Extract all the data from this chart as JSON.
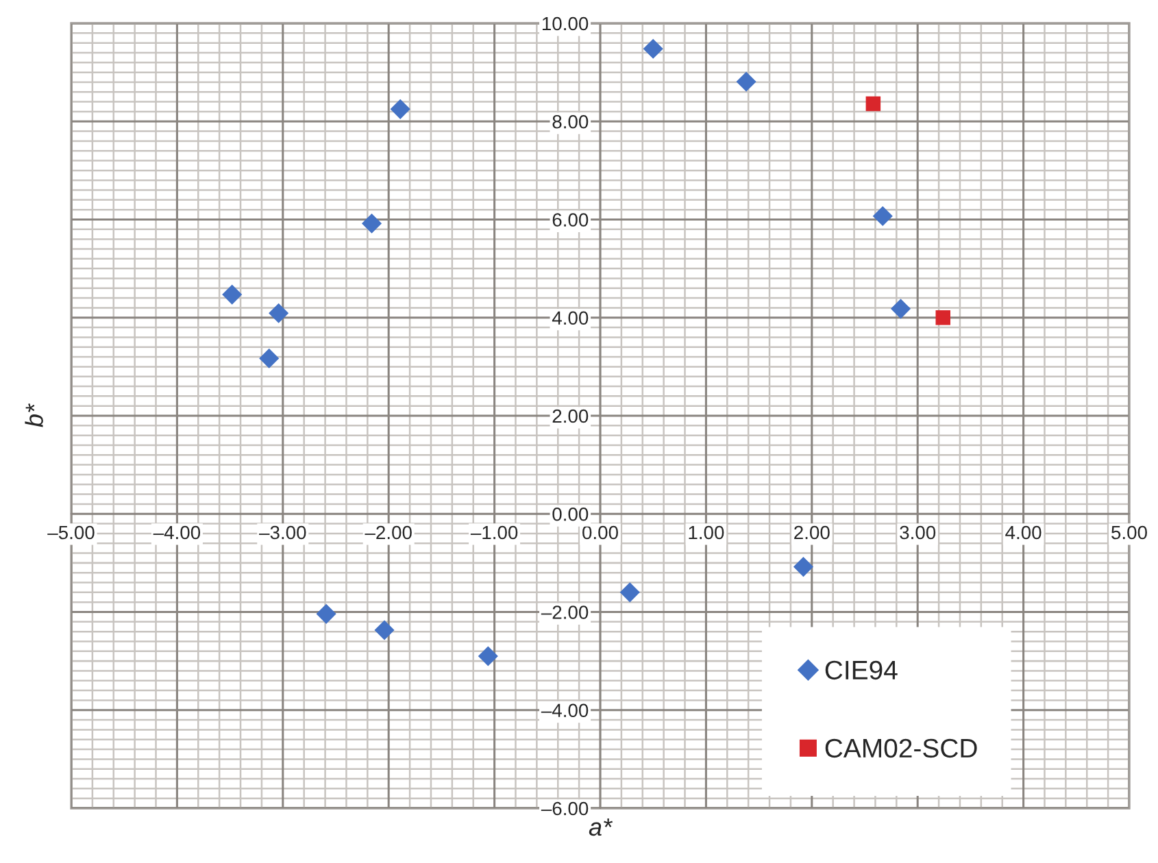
{
  "chart_data": {
    "type": "scatter",
    "xlabel": "a*",
    "ylabel": "b*",
    "xlim": [
      -5,
      5
    ],
    "ylim": [
      -6,
      10
    ],
    "xticks": [
      {
        "value": -5,
        "label": "–5.00"
      },
      {
        "value": -4,
        "label": "–4.00"
      },
      {
        "value": -3,
        "label": "–3.00"
      },
      {
        "value": -2,
        "label": "–2.00"
      },
      {
        "value": -1,
        "label": "–1.00"
      },
      {
        "value": 0,
        "label": "0.00"
      },
      {
        "value": 1,
        "label": "1.00"
      },
      {
        "value": 2,
        "label": "2.00"
      },
      {
        "value": 3,
        "label": "3.00"
      },
      {
        "value": 4,
        "label": "4.00"
      },
      {
        "value": 5,
        "label": "5.00"
      }
    ],
    "yticks": [
      {
        "value": -6,
        "label": "–6.00"
      },
      {
        "value": -4,
        "label": "–4.00"
      },
      {
        "value": -2,
        "label": "–2.00"
      },
      {
        "value": 0,
        "label": "0.00"
      },
      {
        "value": 2,
        "label": "2.00"
      },
      {
        "value": 4,
        "label": "4.00"
      },
      {
        "value": 6,
        "label": "6.00"
      },
      {
        "value": 8,
        "label": "8.00"
      },
      {
        "value": 10,
        "label": "10.00"
      }
    ],
    "grid": true,
    "legend": "bottom right",
    "series": [
      {
        "name": "CIE94",
        "color": "#4472c4",
        "marker": "diamond",
        "x": [
          -3.48,
          -3.04,
          -3.13,
          -2.16,
          -1.89,
          0.5,
          1.38,
          2.67,
          2.84,
          -2.59,
          -2.04,
          -1.06,
          0.28,
          1.92
        ],
        "values": [
          4.47,
          4.09,
          3.17,
          5.92,
          8.25,
          9.48,
          8.81,
          6.07,
          4.18,
          -2.04,
          -2.37,
          -2.9,
          -1.6,
          -1.08
        ]
      },
      {
        "name": "CAM02-SCD",
        "color": "#d9262b",
        "marker": "square",
        "x": [
          2.58,
          3.24
        ],
        "values": [
          8.36,
          4.0
        ]
      }
    ]
  }
}
